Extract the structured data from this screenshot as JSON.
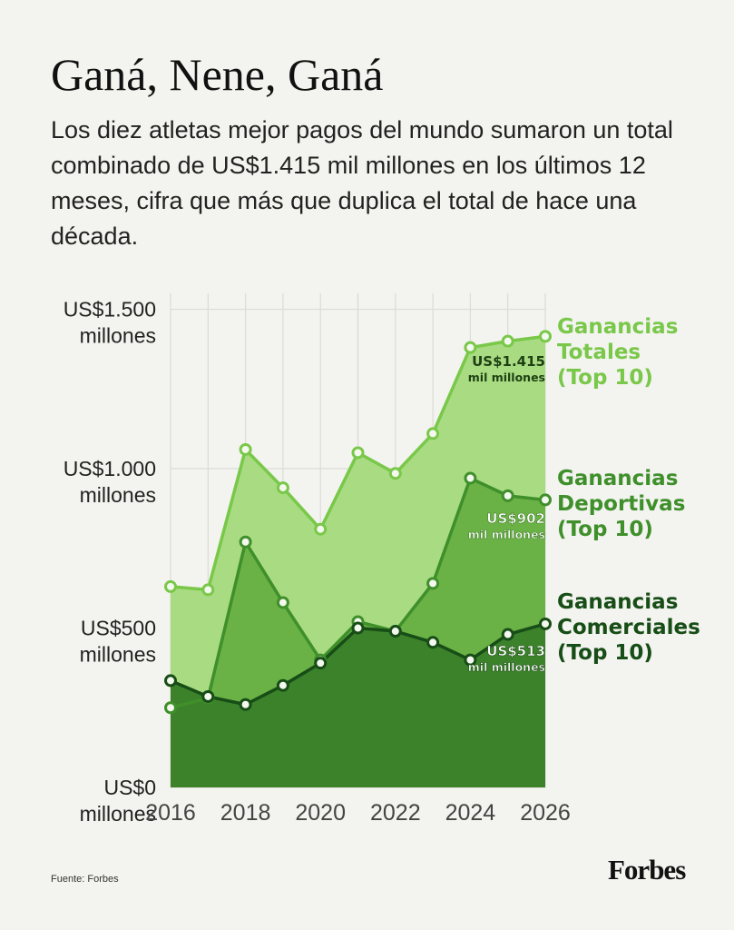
{
  "title": "Ganá, Nene, Ganá",
  "subtitle": "Los diez atletas mejor pagos del mundo sumaron un total combinado de US$1.415 mil millones en los últimos 12 meses, cifra que más que duplica el total de hace una década.",
  "source": "Fuente: Forbes",
  "logo": "Forbes",
  "colors": {
    "totales_fill": "#a9dc82",
    "totales_line": "#79c84a",
    "deportivas_fill": "#6bb246",
    "deportivas_line": "#3f8f2b",
    "comerciales_fill": "#3c822b",
    "comerciales_line": "#174d16",
    "grid": "#dcdcd6",
    "background": "#f3f3ef"
  },
  "chart_data": {
    "type": "area",
    "x": [
      2016,
      2017,
      2018,
      2019,
      2020,
      2021,
      2022,
      2023,
      2024,
      2025,
      2026
    ],
    "xticks": [
      "2016",
      "2018",
      "2020",
      "2022",
      "2024",
      "2026"
    ],
    "yticks": [
      {
        "value": 1500,
        "label": [
          "US$1.500",
          "millones"
        ]
      },
      {
        "value": 1000,
        "label": [
          "US$1.000",
          "millones"
        ]
      },
      {
        "value": 500,
        "label": [
          "US$500",
          "millones"
        ]
      },
      {
        "value": 0,
        "label": [
          "US$0",
          "millones"
        ]
      }
    ],
    "ylim": [
      0,
      1550
    ],
    "xlim": [
      2016,
      2026
    ],
    "grid": true,
    "series": [
      {
        "name": [
          "Ganancias",
          "Totales",
          "(Top 10)"
        ],
        "values": [
          630,
          620,
          1060,
          940,
          810,
          1050,
          985,
          1110,
          1380,
          1400,
          1415
        ],
        "end_label": [
          "US$1.415",
          "mil millones"
        ]
      },
      {
        "name": [
          "Ganancias",
          "Deportivas",
          "(Top 10)"
        ],
        "values": [
          250,
          280,
          770,
          580,
          400,
          520,
          490,
          640,
          970,
          915,
          902
        ],
        "end_label": [
          "US$902",
          "mil millones"
        ]
      },
      {
        "name": [
          "Ganancias",
          "Comerciales",
          "(Top 10)"
        ],
        "values": [
          335,
          285,
          260,
          320,
          390,
          500,
          490,
          455,
          400,
          480,
          513
        ],
        "end_label": [
          "US$513",
          "mil millones"
        ]
      }
    ]
  }
}
